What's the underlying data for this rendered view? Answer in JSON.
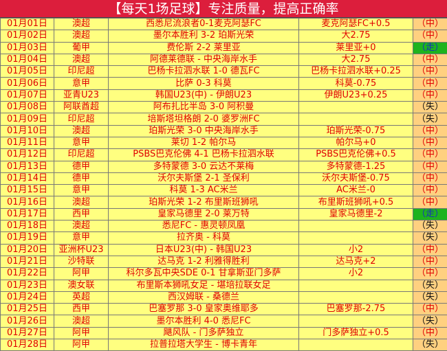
{
  "title": "【每天1场足球】专注质量，提高正确率",
  "colors": {
    "title_bg": "#dc1e3c",
    "row_bg": "#ffff80",
    "result_bg": "#ffd080",
    "push_bg": "#1eb31e",
    "text_red": "#e00000"
  },
  "rows": [
    {
      "date": "01月01日",
      "league": "澳超",
      "match": "西悉尼流浪者0-1麦克阿瑟FC",
      "tip": "麦克阿瑟FC+0.5",
      "result": "（中）"
    },
    {
      "date": "01月02日",
      "league": "澳超",
      "match": "墨尔本胜利 3-2 珀斯光荣",
      "tip": "大2.75",
      "result": "（中）"
    },
    {
      "date": "01月03日",
      "league": "葡甲",
      "match": "费伦斯 2-2 莱里亚",
      "tip": "莱里亚+0",
      "result": "（走）"
    },
    {
      "date": "01月04日",
      "league": "澳超",
      "match": "阿德莱德联 - 中央海岸水手",
      "tip": "大2.75",
      "result": "（中）"
    },
    {
      "date": "01月05日",
      "league": "印尼超",
      "match": "巴杨卡拉泗水联 1-0 德瓦FC",
      "tip": "巴杨卡拉泗水联+0.25",
      "result": "（中）"
    },
    {
      "date": "01月06日",
      "league": "意甲",
      "match": "比萨 0-3 科莫",
      "tip": "科莫-0.75",
      "result": "（中）"
    },
    {
      "date": "01月07日",
      "league": "亚青U23",
      "match": "韩国U23(中) - 伊朗U23",
      "tip": "伊朗U23+0.25",
      "result": "（中）"
    },
    {
      "date": "01月08日",
      "league": "阿联酋超",
      "match": "阿布扎比半岛 3-0 阿积曼",
      "tip": "",
      "result": "（失）"
    },
    {
      "date": "01月09日",
      "league": "印尼超",
      "match": "培斯塔坦格朗 2-0 婆罗洲FC",
      "tip": "",
      "result": "（失）"
    },
    {
      "date": "01月10日",
      "league": "澳超",
      "match": "珀斯光荣 3-0 中央海岸水手",
      "tip": "珀斯光荣-0.75",
      "result": "（中）"
    },
    {
      "date": "01月11日",
      "league": "意甲",
      "match": "莱切 1-2 帕尔马",
      "tip": "帕尔马+0",
      "result": "（中）"
    },
    {
      "date": "01月12日",
      "league": "印尼超",
      "match": "PSBS巴克伦佛 4-1 巴杨卡拉泗水联",
      "tip": "PSBS巴克伦佛+0.5",
      "result": "（中）"
    },
    {
      "date": "01月13日",
      "league": "德甲",
      "match": "多特蒙德 3-0 云达不莱梅",
      "tip": "多特蒙德-1.25",
      "result": "（中）"
    },
    {
      "date": "01月14日",
      "league": "德甲",
      "match": "沃尔夫斯堡 2-1 圣保利",
      "tip": "沃尔夫斯堡-0.75",
      "result": "（中）"
    },
    {
      "date": "01月15日",
      "league": "意甲",
      "match": "科莫 1-3 AC米兰",
      "tip": "AC米兰-0",
      "result": "（中）"
    },
    {
      "date": "01月16日",
      "league": "澳超",
      "match": "珀斯光荣 1-2 布里斯班狮吼",
      "tip": "布里斯班狮吼+0.5",
      "result": "（中）"
    },
    {
      "date": "01月17日",
      "league": "西甲",
      "match": "皇家马德里 2-0 莱万特",
      "tip": "皇家马德里-2",
      "result": "（走）"
    },
    {
      "date": "01月18日",
      "league": "澳超",
      "match": "悉尼FC - 惠灵顿凤凰",
      "tip": "",
      "result": "（失）"
    },
    {
      "date": "01月19日",
      "league": "意甲",
      "match": "拉齐奥 - 科莫",
      "tip": "",
      "result": "（失）"
    },
    {
      "date": "01月20日",
      "league": "亚洲杯U23",
      "match": "日本U23(中) - 韩国U23",
      "tip": "小2",
      "result": "（中）"
    },
    {
      "date": "01月21日",
      "league": "沙特联",
      "match": "达马克 1-2 利雅得胜利",
      "tip": "达马克+2",
      "result": "（中）"
    },
    {
      "date": "01月22日",
      "league": "阿甲",
      "match": "科尔多瓦中央SDE 0-1 甘拿斯亚门多萨",
      "tip": "小2",
      "result": "（中）"
    },
    {
      "date": "01月23日",
      "league": "澳女联",
      "match": "布里斯本狮吼女足 - 堪培拉联女足",
      "tip": "",
      "result": "（失）"
    },
    {
      "date": "01月24日",
      "league": "英超",
      "match": "西汉姆联 - 桑德兰",
      "tip": "",
      "result": "（失）"
    },
    {
      "date": "01月25日",
      "league": "西甲",
      "match": "巴塞罗那 3-0 皇家奥维耶多",
      "tip": "巴塞罗那-2.75",
      "result": "（中）"
    },
    {
      "date": "01月26日",
      "league": "澳超",
      "match": "墨尔本胜利 4-0 悉尼FC",
      "tip": "",
      "result": "（失）"
    },
    {
      "date": "01月27日",
      "league": "阿甲",
      "match": "飓风队 - 门多萨独立",
      "tip": "门多萨独立+0.5",
      "result": "（中）"
    },
    {
      "date": "01月28日",
      "league": "阿甲",
      "match": "拉普拉塔大学生 - 博卡青年",
      "tip": "",
      "result": "（失）"
    }
  ]
}
